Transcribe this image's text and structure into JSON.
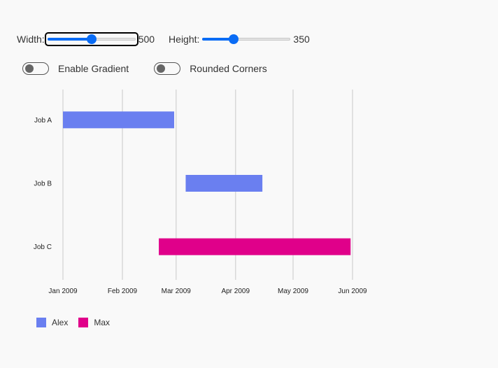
{
  "controls": {
    "width_label": "Width:",
    "width_value": "500",
    "width_fraction": 0.5,
    "height_label": "Height:",
    "height_value": "350",
    "height_fraction": 0.35,
    "gradient_label": "Enable Gradient",
    "gradient_on": false,
    "rounded_label": "Rounded Corners",
    "rounded_on": false
  },
  "colors": {
    "alex": "#6a7ff0",
    "max": "#e0008a",
    "slider": "#0a6cf5",
    "grid": "#d9d9d9"
  },
  "chart_data": {
    "type": "gantt",
    "categories": [
      "Job A",
      "Job B",
      "Job C"
    ],
    "x_ticks": [
      "Jan 2009",
      "Feb 2009",
      "Mar 2009",
      "Apr 2009",
      "May 2009",
      "Jun 2009"
    ],
    "xlim": [
      "2009-01-01",
      "2009-06-01"
    ],
    "grid": true,
    "legend": "bottom-left",
    "series": [
      {
        "name": "Alex",
        "color": "#6a7ff0",
        "tasks": [
          {
            "job": "Job A",
            "start": "2009-01-01",
            "end": "2009-02-28"
          },
          {
            "job": "Job B",
            "start": "2009-03-06",
            "end": "2009-04-15"
          }
        ]
      },
      {
        "name": "Max",
        "color": "#e0008a",
        "tasks": [
          {
            "job": "Job C",
            "start": "2009-02-20",
            "end": "2009-05-31"
          }
        ]
      }
    ]
  }
}
